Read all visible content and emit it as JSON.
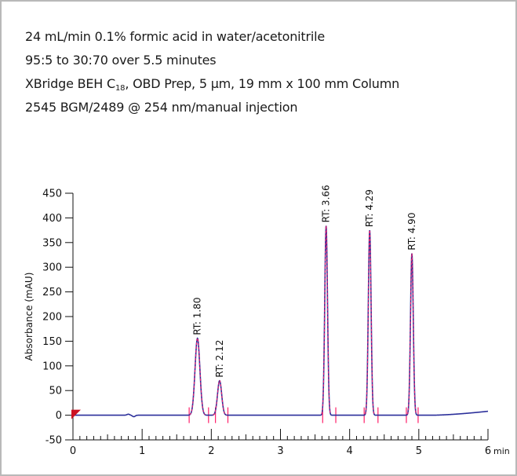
{
  "conditions": {
    "line1": "24 mL/min 0.1% formic acid in water/acetonitrile",
    "line2": "95:5 to 30:70 over 5.5 minutes",
    "line3_prefix": "XBridge BEH C",
    "line3_sub": "18",
    "line3_suffix": ", OBD Prep, 5 µm, 19 mm x 100 mm Column",
    "line4": "2545 BGM/2489 @ 254 nm/manual injection"
  },
  "chart_data": {
    "type": "line",
    "title": "",
    "xlabel": "",
    "x_unit_label": "min",
    "ylabel": "Absorbance (mAU)",
    "xlim": [
      0,
      6
    ],
    "ylim": [
      -50,
      450
    ],
    "x_ticks": [
      0,
      1,
      2,
      3,
      4,
      5,
      6
    ],
    "x_tick_labels": [
      "0",
      "1",
      "2",
      "3",
      "4",
      "5",
      "6"
    ],
    "y_ticks": [
      -50,
      0,
      50,
      100,
      150,
      200,
      250,
      300,
      350,
      400,
      450
    ],
    "y_tick_labels": [
      "-50",
      "0",
      "50",
      "100",
      "150",
      "200",
      "250",
      "300",
      "350",
      "400",
      "450"
    ],
    "grid": false,
    "colors": {
      "trace": "#2b2f9a",
      "overlay": "#ff1f6a",
      "markers": "#ff1f6a",
      "axis": "#111111",
      "start_marker": "#cc1122"
    },
    "baseline": 0,
    "peaks": [
      {
        "rt": 1.8,
        "height": 156,
        "width": 0.035,
        "label": "RT: 1.80",
        "start": 1.68,
        "end": 1.96
      },
      {
        "rt": 2.12,
        "height": 70,
        "width": 0.03,
        "label": "RT: 2.12",
        "start": 2.06,
        "end": 2.24
      },
      {
        "rt": 3.66,
        "height": 384,
        "width": 0.02,
        "label": "RT: 3.66",
        "start": 3.61,
        "end": 3.8
      },
      {
        "rt": 4.29,
        "height": 375,
        "width": 0.02,
        "label": "RT: 4.29",
        "start": 4.21,
        "end": 4.41
      },
      {
        "rt": 4.9,
        "height": 328,
        "width": 0.02,
        "label": "RT: 4.90",
        "start": 4.82,
        "end": 4.99
      }
    ],
    "baseline_features": [
      {
        "x": 0.8,
        "y": 2
      },
      {
        "x": 0.88,
        "y": -3
      }
    ],
    "drift_end_y": 8
  }
}
